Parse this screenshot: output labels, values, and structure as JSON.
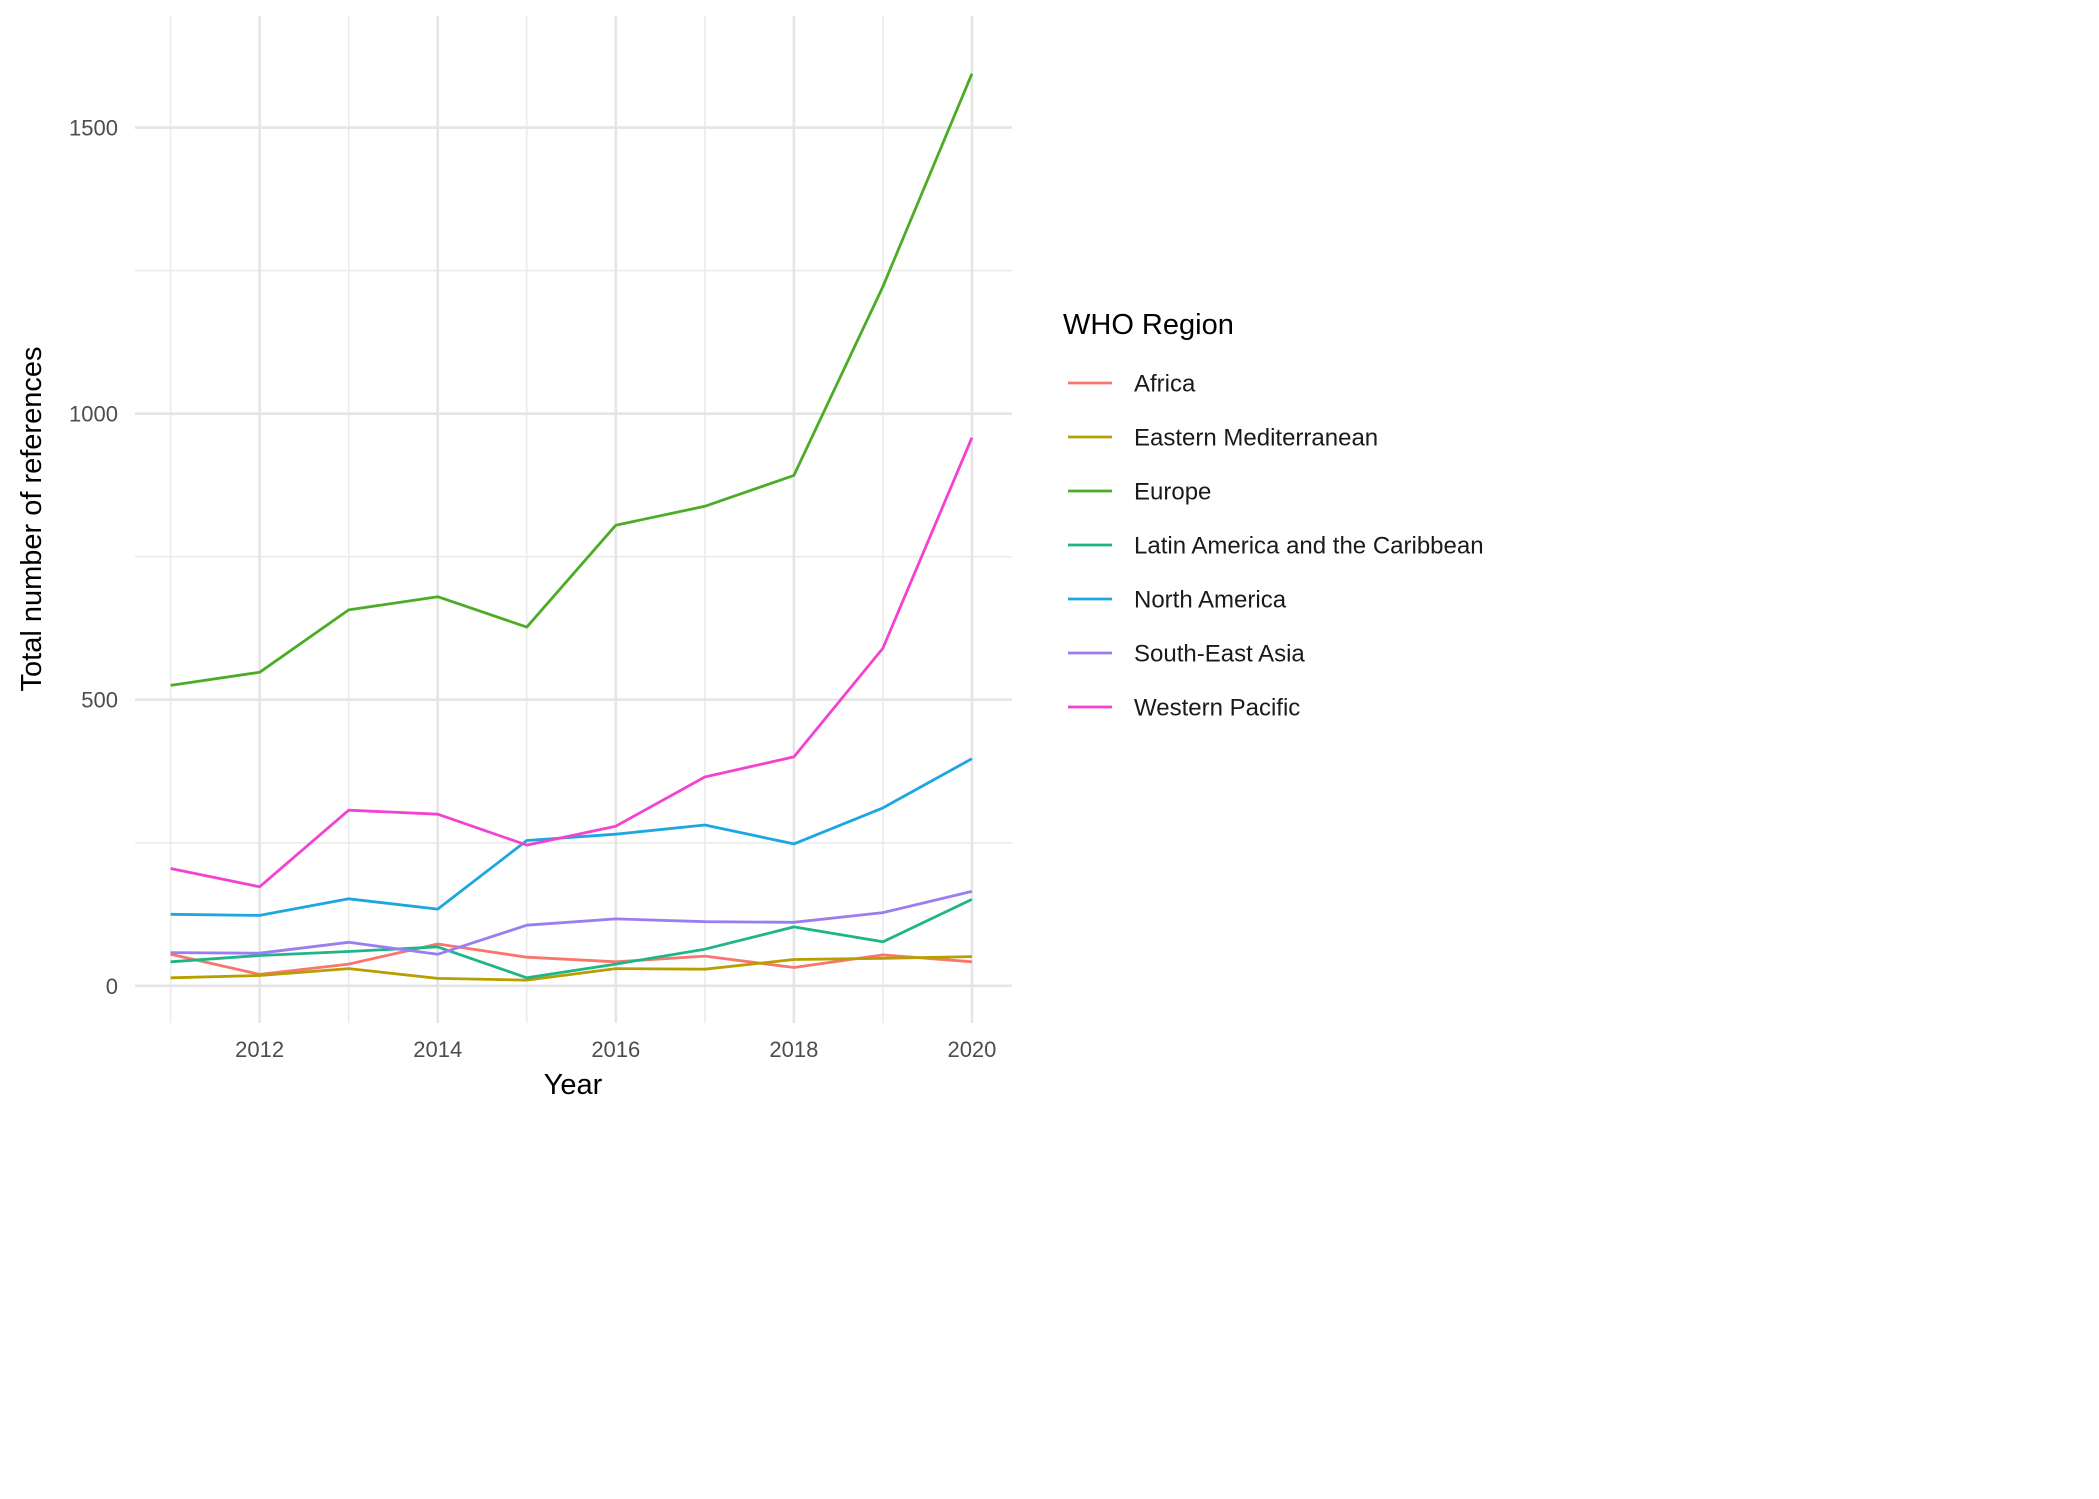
{
  "chart_data": {
    "type": "line",
    "title": "",
    "xlabel": "Year",
    "ylabel": "Total number of references",
    "x": [
      2011,
      2012,
      2013,
      2014,
      2015,
      2016,
      2017,
      2018,
      2019,
      2020
    ],
    "x_ticks": [
      2012,
      2014,
      2016,
      2018,
      2020
    ],
    "y_ticks": [
      0,
      500,
      1000,
      1500
    ],
    "xlim": [
      2010.6,
      2020.45
    ],
    "ylim": [
      -65,
      1695
    ],
    "grid": true,
    "legend": {
      "title": "WHO Region",
      "position": "right"
    },
    "series": [
      {
        "name": "Africa",
        "color": "#F8766D",
        "values": [
          55,
          20,
          38,
          73,
          50,
          42,
          52,
          32,
          54,
          42
        ]
      },
      {
        "name": "Eastern Mediterranean",
        "color": "#B79F00",
        "values": [
          14,
          18,
          30,
          13,
          10,
          30,
          29,
          46,
          48,
          51
        ]
      },
      {
        "name": "Europe",
        "color": "#4DAC26",
        "values": [
          525,
          548,
          657,
          680,
          627,
          805,
          838,
          892,
          1222,
          1594
        ]
      },
      {
        "name": "Latin America and the Caribbean",
        "color": "#1FB589",
        "values": [
          42,
          53,
          60,
          68,
          14,
          38,
          64,
          103,
          77,
          151
        ]
      },
      {
        "name": "North America",
        "color": "#1DA6E0",
        "values": [
          125,
          123,
          152,
          134,
          254,
          265,
          281,
          248,
          311,
          397
        ]
      },
      {
        "name": "South-East Asia",
        "color": "#9B7DF2",
        "values": [
          58,
          57,
          76,
          55,
          106,
          117,
          112,
          111,
          128,
          165
        ]
      },
      {
        "name": "Western Pacific",
        "color": "#F342D0",
        "values": [
          205,
          173,
          307,
          300,
          246,
          279,
          365,
          400,
          590,
          958
        ]
      }
    ]
  }
}
